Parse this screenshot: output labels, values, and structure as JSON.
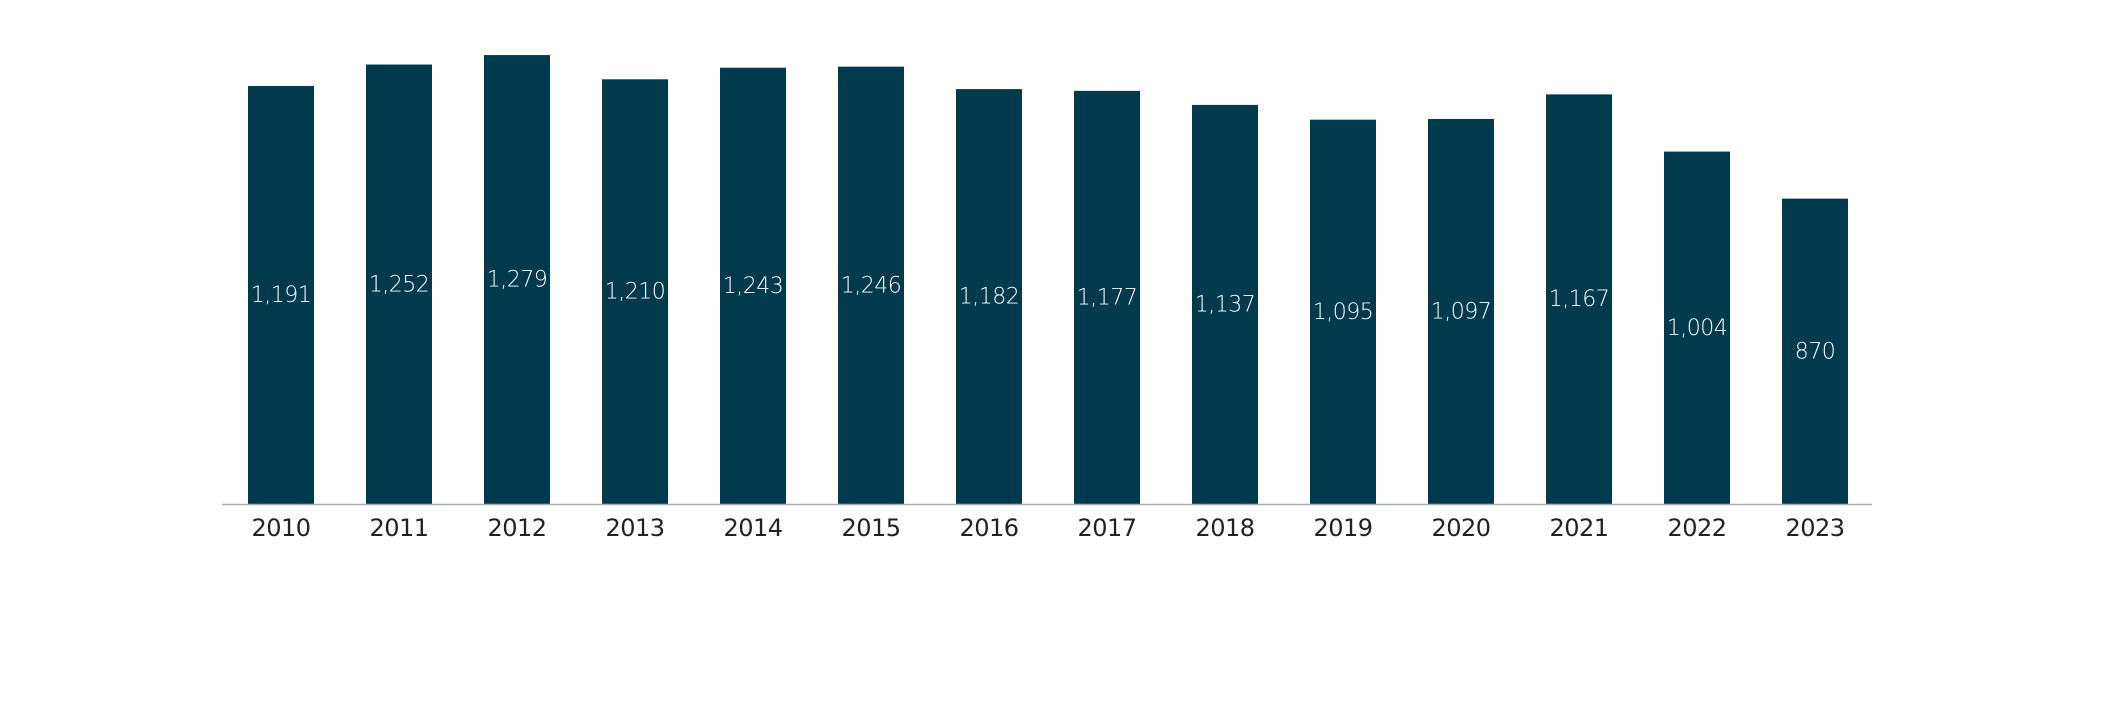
{
  "chart_data": {
    "type": "bar",
    "title": "",
    "xlabel": "",
    "ylabel": "",
    "categories": [
      "2010",
      "2011",
      "2012",
      "2013",
      "2014",
      "2015",
      "2016",
      "2017",
      "2018",
      "2019",
      "2020",
      "2021",
      "2022",
      "2023"
    ],
    "values": [
      1191,
      1252,
      1279,
      1210,
      1243,
      1246,
      1182,
      1177,
      1137,
      1095,
      1097,
      1167,
      1004,
      870
    ],
    "value_labels": [
      "1,191",
      "1,252",
      "1,279",
      "1,210",
      "1,243",
      "1,246",
      "1,182",
      "1,177",
      "1,137",
      "1,095",
      "1,097",
      "1,167",
      "1,004",
      "870"
    ],
    "ylim": [
      0,
      1300
    ],
    "grid": false,
    "legend": "none",
    "colors": {
      "bar": "#003a4c",
      "axis": "#a9afb6",
      "label": "#ffffff",
      "tick": "#222222"
    }
  }
}
